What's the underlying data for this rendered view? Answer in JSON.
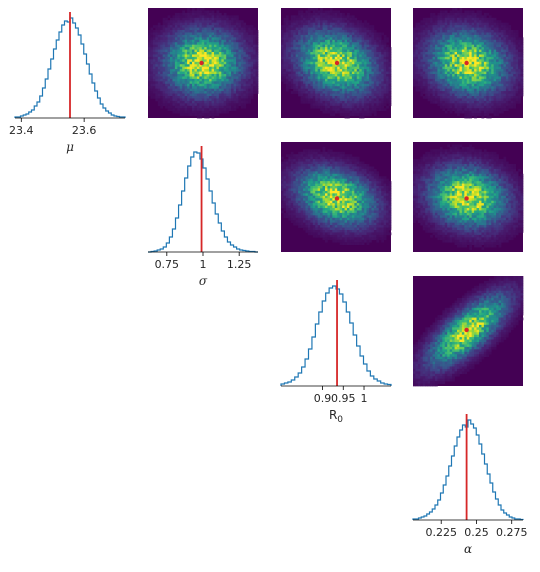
{
  "chart_data": {
    "type": "corner-plot",
    "parameters": [
      {
        "key": "mu",
        "label": "μ",
        "label_style": "italic",
        "xlim": [
          23.38,
          23.73
        ],
        "ticks": [
          23.4,
          23.6
        ],
        "tick_labels": [
          "23.4",
          "23.6"
        ],
        "truth": 23.555,
        "hist": [
          0.01,
          0.01,
          0.02,
          0.03,
          0.04,
          0.06,
          0.08,
          0.12,
          0.16,
          0.22,
          0.3,
          0.39,
          0.49,
          0.59,
          0.69,
          0.78,
          0.86,
          0.93,
          0.97,
          0.96,
          1.0,
          0.95,
          0.9,
          0.83,
          0.74,
          0.64,
          0.54,
          0.44,
          0.35,
          0.27,
          0.2,
          0.14,
          0.1,
          0.07,
          0.05,
          0.03,
          0.02,
          0.015,
          0.01,
          0.01
        ]
      },
      {
        "key": "sigma",
        "label": "σ",
        "label_style": "italic",
        "xlim": [
          0.62,
          1.38
        ],
        "ticks": [
          0.75,
          1.0,
          1.25
        ],
        "tick_labels": [
          "0.75",
          "1",
          "1.25"
        ],
        "truth": 0.99,
        "hist": [
          0.0,
          0.005,
          0.01,
          0.02,
          0.03,
          0.05,
          0.09,
          0.15,
          0.23,
          0.34,
          0.47,
          0.61,
          0.74,
          0.86,
          0.95,
          1.0,
          0.99,
          0.93,
          0.84,
          0.73,
          0.61,
          0.49,
          0.38,
          0.29,
          0.21,
          0.15,
          0.1,
          0.07,
          0.05,
          0.03,
          0.02,
          0.015,
          0.01,
          0.005,
          0.005,
          0.0
        ]
      },
      {
        "key": "R0",
        "label": "R",
        "label_sub": "0",
        "label_style": "upright",
        "xlim": [
          0.8,
          1.065
        ],
        "ticks": [
          0.9,
          0.95,
          1.0
        ],
        "tick_labels": [
          "0.9",
          "0.95",
          "1"
        ],
        "truth": 0.935,
        "hist": [
          0.02,
          0.03,
          0.04,
          0.06,
          0.09,
          0.13,
          0.19,
          0.27,
          0.37,
          0.49,
          0.62,
          0.74,
          0.85,
          0.93,
          0.98,
          1.0,
          0.97,
          0.92,
          0.84,
          0.74,
          0.63,
          0.51,
          0.4,
          0.3,
          0.22,
          0.15,
          0.1,
          0.07,
          0.05,
          0.03,
          0.02,
          0.015
        ]
      },
      {
        "key": "alpha",
        "label": "α",
        "label_style": "italic",
        "xlim": [
          0.205,
          0.283
        ],
        "ticks": [
          0.225,
          0.25,
          0.275
        ],
        "tick_labels": [
          "0.225",
          "0.25",
          "0.275"
        ],
        "truth": 0.243,
        "hist": [
          0.01,
          0.01,
          0.02,
          0.03,
          0.04,
          0.06,
          0.08,
          0.11,
          0.15,
          0.2,
          0.27,
          0.35,
          0.44,
          0.54,
          0.64,
          0.74,
          0.83,
          0.9,
          0.95,
          0.93,
          1.0,
          0.96,
          0.92,
          0.85,
          0.76,
          0.66,
          0.56,
          0.46,
          0.37,
          0.28,
          0.21,
          0.15,
          0.1,
          0.07,
          0.05,
          0.03,
          0.02,
          0.01,
          0.01,
          0.005
        ]
      }
    ],
    "pairs": [
      {
        "row": 0,
        "col": 1,
        "correlation": 0.0,
        "spread_x": 0.22,
        "spread_y": 0.18
      },
      {
        "row": 0,
        "col": 2,
        "correlation": -0.25,
        "spread_x": 0.22,
        "spread_y": 0.18
      },
      {
        "row": 0,
        "col": 3,
        "correlation": -0.15,
        "spread_x": 0.22,
        "spread_y": 0.18
      },
      {
        "row": 1,
        "col": 2,
        "correlation": -0.3,
        "spread_x": 0.22,
        "spread_y": 0.16
      },
      {
        "row": 1,
        "col": 3,
        "correlation": -0.15,
        "spread_x": 0.22,
        "spread_y": 0.17
      },
      {
        "row": 2,
        "col": 3,
        "correlation": 0.75,
        "spread_x": 0.22,
        "spread_y": 0.2
      }
    ],
    "colors": {
      "hist_line": "#1f77b4",
      "truth_line": "#d62728",
      "truth_marker": "#d62728",
      "colormap": "viridis"
    },
    "grid": false,
    "legend": "none"
  }
}
